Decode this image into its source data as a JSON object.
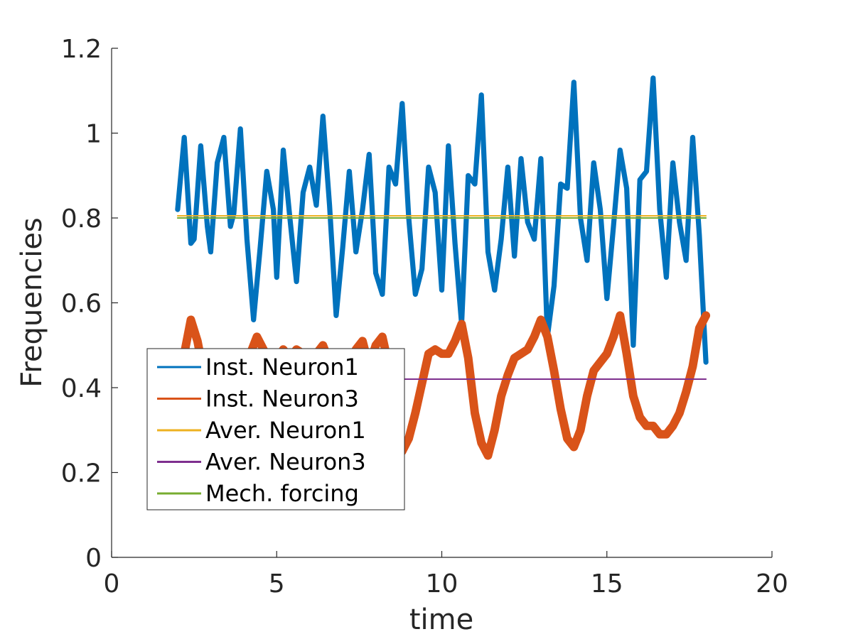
{
  "chart_data": {
    "type": "line",
    "title": "",
    "xlabel": "time",
    "ylabel": "Frequencies",
    "xlim": [
      0,
      20
    ],
    "ylim": [
      0,
      1.2
    ],
    "x_ticks": [
      "0",
      "5",
      "10",
      "15",
      "20"
    ],
    "y_ticks": [
      "0",
      "0.2",
      "0.4",
      "0.6",
      "0.8",
      "1",
      "1.2"
    ],
    "x_tick_values": [
      0,
      5,
      10,
      15,
      20
    ],
    "y_tick_values": [
      0,
      0.2,
      0.4,
      0.6,
      0.8,
      1.0,
      1.2
    ],
    "grid": false,
    "legend_position": "lower-left",
    "series": [
      {
        "name": "Inst. Neuron1",
        "color": "#0072BD",
        "band_width": 0.012,
        "x": [
          2.0,
          2.2,
          2.4,
          2.5,
          2.7,
          2.9,
          3.0,
          3.2,
          3.4,
          3.6,
          3.7,
          3.9,
          4.1,
          4.3,
          4.5,
          4.7,
          4.9,
          5.0,
          5.2,
          5.4,
          5.6,
          5.8,
          6.0,
          6.2,
          6.4,
          6.6,
          6.8,
          7.0,
          7.2,
          7.4,
          7.6,
          7.8,
          8.0,
          8.2,
          8.4,
          8.6,
          8.8,
          9.0,
          9.2,
          9.4,
          9.6,
          9.8,
          10.0,
          10.2,
          10.4,
          10.6,
          10.8,
          11.0,
          11.2,
          11.4,
          11.6,
          11.8,
          12.0,
          12.2,
          12.4,
          12.6,
          12.8,
          13.0,
          13.2,
          13.4,
          13.6,
          13.8,
          14.0,
          14.2,
          14.4,
          14.6,
          14.8,
          15.0,
          15.2,
          15.4,
          15.6,
          15.8,
          16.0,
          16.2,
          16.4,
          16.6,
          16.8,
          17.0,
          17.2,
          17.4,
          17.6,
          17.8,
          18.0
        ],
        "y": [
          0.82,
          0.99,
          0.74,
          0.75,
          0.97,
          0.78,
          0.72,
          0.93,
          0.99,
          0.78,
          0.81,
          1.01,
          0.75,
          0.56,
          0.73,
          0.91,
          0.82,
          0.66,
          0.96,
          0.8,
          0.65,
          0.86,
          0.92,
          0.83,
          1.04,
          0.83,
          0.57,
          0.73,
          0.91,
          0.72,
          0.82,
          0.95,
          0.67,
          0.62,
          0.92,
          0.88,
          1.07,
          0.8,
          0.62,
          0.68,
          0.92,
          0.86,
          0.63,
          0.97,
          0.74,
          0.55,
          0.9,
          0.88,
          1.09,
          0.72,
          0.63,
          0.75,
          0.92,
          0.71,
          0.94,
          0.79,
          0.75,
          0.94,
          0.52,
          0.64,
          0.88,
          0.87,
          1.12,
          0.8,
          0.7,
          0.93,
          0.82,
          0.61,
          0.78,
          0.96,
          0.87,
          0.5,
          0.89,
          0.91,
          1.13,
          0.82,
          0.66,
          0.93,
          0.79,
          0.7,
          0.99,
          0.76,
          0.46
        ]
      },
      {
        "name": "Inst. Neuron3",
        "color": "#D95319",
        "band_width": 0.02,
        "x": [
          2.0,
          2.2,
          2.4,
          2.6,
          2.8,
          3.0,
          3.2,
          3.4,
          3.6,
          3.8,
          4.0,
          4.2,
          4.4,
          4.6,
          4.8,
          5.0,
          5.2,
          5.4,
          5.6,
          5.8,
          6.0,
          6.2,
          6.4,
          6.6,
          6.8,
          7.0,
          7.2,
          7.4,
          7.6,
          7.8,
          8.0,
          8.2,
          8.4,
          8.6,
          8.8,
          9.0,
          9.2,
          9.4,
          9.6,
          9.8,
          10.0,
          10.2,
          10.4,
          10.6,
          10.8,
          11.0,
          11.2,
          11.4,
          11.6,
          11.8,
          12.0,
          12.2,
          12.4,
          12.6,
          12.8,
          13.0,
          13.2,
          13.4,
          13.6,
          13.8,
          14.0,
          14.2,
          14.4,
          14.6,
          14.8,
          15.0,
          15.2,
          15.4,
          15.6,
          15.8,
          16.0,
          16.2,
          16.4,
          16.6,
          16.8,
          17.0,
          17.2,
          17.4,
          17.6,
          17.8,
          18.0
        ],
        "y": [
          0.44,
          0.48,
          0.56,
          0.51,
          0.43,
          0.4,
          0.38,
          0.37,
          0.38,
          0.4,
          0.44,
          0.48,
          0.52,
          0.49,
          0.46,
          0.47,
          0.49,
          0.47,
          0.49,
          0.48,
          0.47,
          0.48,
          0.5,
          0.46,
          0.44,
          0.42,
          0.45,
          0.49,
          0.51,
          0.45,
          0.5,
          0.52,
          0.45,
          0.3,
          0.25,
          0.28,
          0.34,
          0.41,
          0.48,
          0.49,
          0.48,
          0.48,
          0.51,
          0.55,
          0.47,
          0.34,
          0.27,
          0.24,
          0.3,
          0.38,
          0.43,
          0.47,
          0.48,
          0.49,
          0.52,
          0.56,
          0.52,
          0.44,
          0.35,
          0.28,
          0.26,
          0.3,
          0.38,
          0.44,
          0.46,
          0.48,
          0.52,
          0.57,
          0.48,
          0.38,
          0.33,
          0.31,
          0.31,
          0.29,
          0.29,
          0.31,
          0.34,
          0.39,
          0.45,
          0.54,
          0.57
        ]
      },
      {
        "name": "Aver. Neuron1",
        "color": "#EDB120",
        "x": [
          2.0,
          18.0
        ],
        "y": [
          0.805,
          0.805
        ]
      },
      {
        "name": "Aver. Neuron3",
        "color": "#7E2F8E",
        "x": [
          2.0,
          18.0
        ],
        "y": [
          0.42,
          0.42
        ]
      },
      {
        "name": "Mech. forcing",
        "color": "#77AC30",
        "x": [
          2.0,
          18.0
        ],
        "y": [
          0.8,
          0.8
        ]
      }
    ]
  }
}
